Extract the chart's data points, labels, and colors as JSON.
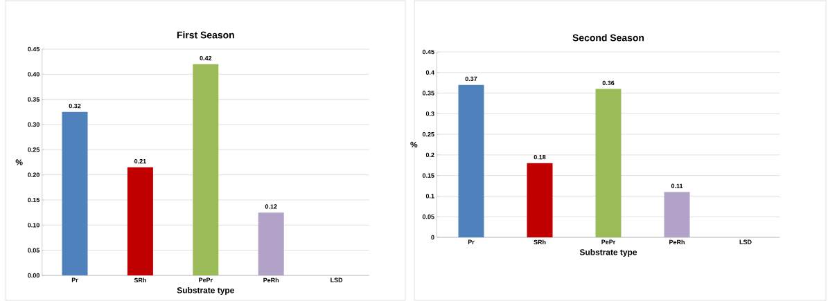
{
  "chart_data": [
    {
      "type": "bar",
      "title": "First Season",
      "xlabel": "Substrate type",
      "ylabel": "%",
      "categories": [
        "Pr",
        "SRh",
        "PePr",
        "PeRh",
        "LSD"
      ],
      "values": [
        0.325,
        0.215,
        0.42,
        0.125,
        null
      ],
      "value_labels": [
        "0.32",
        "0.21",
        "0.42",
        "0.12",
        null
      ],
      "colors": [
        "#4f81bd",
        "#c00000",
        "#9bbb59",
        "#b3a2c7",
        null
      ],
      "ylim": [
        0,
        0.45
      ],
      "yticks": [
        {
          "value": 0,
          "label": "0.00"
        },
        {
          "value": 0.05,
          "label": "0.05"
        },
        {
          "value": 0.1,
          "label": "0.10"
        },
        {
          "value": 0.15,
          "label": "0.15"
        },
        {
          "value": 0.2,
          "label": "0.20"
        },
        {
          "value": 0.25,
          "label": "0.25"
        },
        {
          "value": 0.3,
          "label": "0.30"
        },
        {
          "value": 0.35,
          "label": "0.35"
        },
        {
          "value": 0.4,
          "label": "0.40"
        },
        {
          "value": 0.45,
          "label": "0.45"
        }
      ],
      "grid": "y"
    },
    {
      "type": "bar",
      "title": "Second  Season",
      "xlabel": "Substrate  type",
      "ylabel": "%",
      "categories": [
        "Pr",
        "SRh",
        "PePr",
        "PeRh",
        "LSD"
      ],
      "values": [
        0.37,
        0.18,
        0.36,
        0.11,
        null
      ],
      "value_labels": [
        "0.37",
        "0.18",
        "0.36",
        "0.11",
        null
      ],
      "colors": [
        "#4f81bd",
        "#c00000",
        "#9bbb59",
        "#b3a2c7",
        null
      ],
      "ylim": [
        0,
        0.45
      ],
      "yticks": [
        0,
        0.05,
        0.1,
        0.15,
        0.2,
        0.25,
        0.3,
        0.35,
        0.4,
        0.45
      ],
      "grid": "y"
    }
  ]
}
